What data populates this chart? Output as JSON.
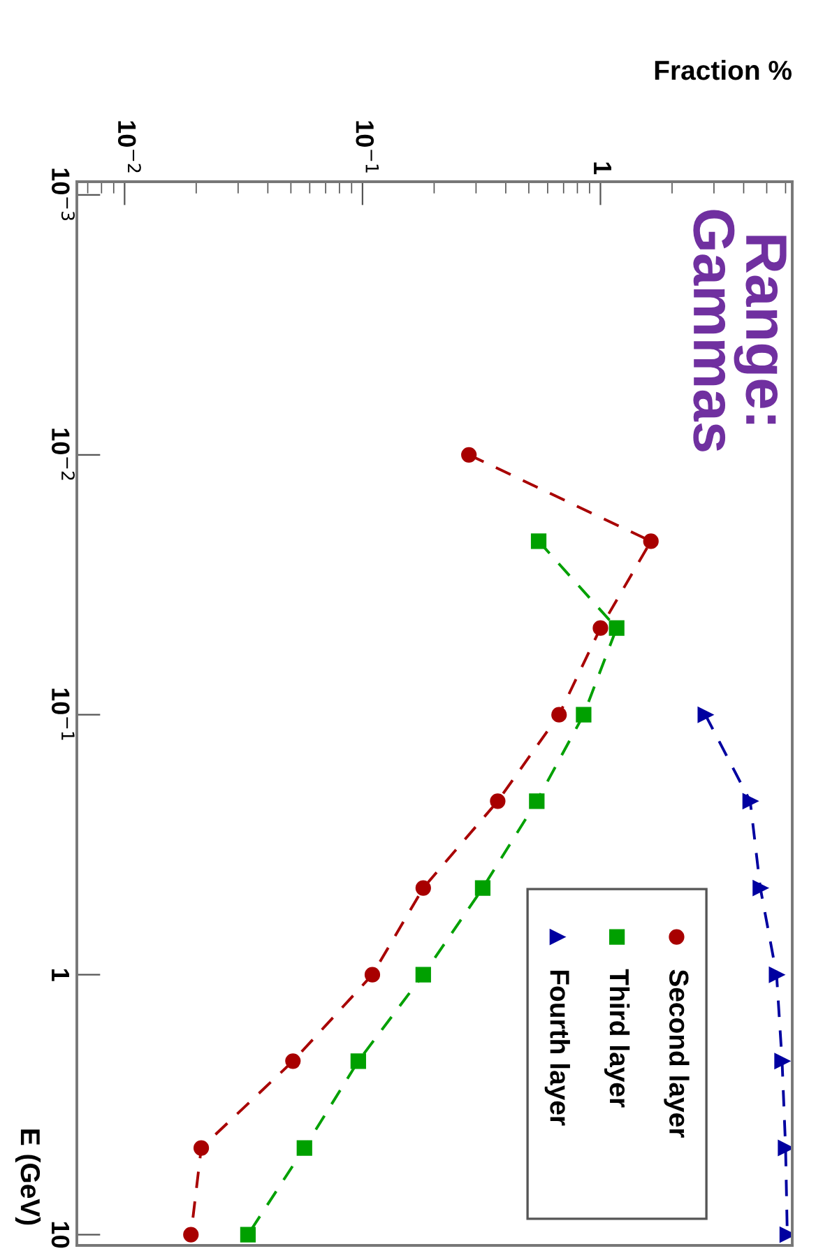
{
  "chart_data": {
    "type": "line",
    "xlabel": "Fraction %",
    "ylabel": "E (GeV)",
    "annotations": [
      "Range:\nGammas"
    ],
    "log": "xy",
    "line_style": "dashed",
    "legend": "bottom right",
    "grid": false,
    "ylim": [
      11,
      0.00089
    ],
    "yticks": [
      {
        "value": 0.001,
        "label": "10$^{−3}$"
      },
      {
        "value": 0.01,
        "label": "10$^{−2}$"
      },
      {
        "value": 0.1,
        "label": "10$^{−1}$"
      },
      1,
      10
    ],
    "xlim": [
      0.0063,
      6.4
    ],
    "xticks": [
      {
        "value": 0.01,
        "label": "10$^{−2}$"
      },
      {
        "value": 0.1,
        "label": "10$^{−1}$"
      },
      1
    ],
    "series": [
      {
        "name": "Second layer",
        "color": "#a80000",
        "marker": "circle",
        "values": [
          0.01,
          0.0215,
          0.0464,
          0.1,
          0.215,
          0.464,
          1,
          2.15,
          4.64,
          10
        ],
        "x": [
          0.28,
          1.63,
          1.0,
          0.67,
          0.37,
          0.18,
          0.11,
          0.051,
          0.021,
          0.019
        ]
      },
      {
        "name": "Third layer",
        "color": "#00a000",
        "marker": "square",
        "values": [
          0.0215,
          0.0464,
          0.1,
          0.215,
          0.464,
          1,
          2.15,
          4.64,
          10
        ],
        "x": [
          0.55,
          1.17,
          0.85,
          0.54,
          0.32,
          0.18,
          0.096,
          0.057,
          0.033
        ]
      },
      {
        "name": "Fourth layer",
        "color": "#0000a0",
        "marker": "triangle",
        "values": [
          0.1,
          0.215,
          0.464,
          1,
          2.15,
          4.64,
          10
        ],
        "x": [
          2.76,
          4.26,
          4.7,
          5.5,
          5.8,
          6.0,
          6.1
        ]
      }
    ]
  }
}
